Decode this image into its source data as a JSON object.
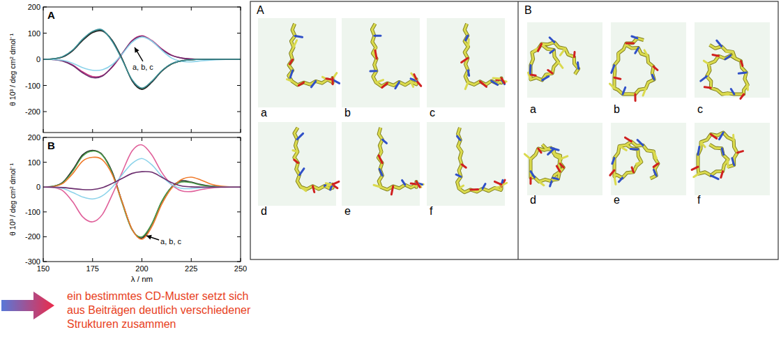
{
  "chart_data": [
    {
      "type": "line",
      "title": "A",
      "y_label": "θ 10³ / deg cm² dmol⁻¹",
      "tick_labels": "y",
      "x": [
        150,
        155,
        160,
        165,
        170,
        175,
        180,
        185,
        190,
        195,
        200,
        205,
        210,
        215,
        220,
        225,
        230,
        235,
        240,
        245,
        250
      ],
      "xlim": [
        150,
        250
      ],
      "xticks": [
        150,
        175,
        200,
        225,
        250
      ],
      "ylim": [
        -280,
        200
      ],
      "yticks": [
        -200,
        -100,
        0,
        100,
        200
      ],
      "annotations": [
        {
          "text": "a, b, c"
        }
      ],
      "series": [
        {
          "color": "#c8307e",
          "values": [
            0,
            -1,
            -6,
            -22,
            -48,
            -66,
            -62,
            -30,
            20,
            72,
            90,
            72,
            40,
            16,
            5,
            1,
            0,
            0,
            0,
            0,
            0
          ]
        },
        {
          "color": "#6b2d6e",
          "values": [
            0,
            -1,
            -7,
            -24,
            -52,
            -70,
            -64,
            -28,
            22,
            70,
            88,
            70,
            38,
            15,
            5,
            1,
            0,
            0,
            0,
            0,
            0
          ]
        },
        {
          "color": "#8cd3ea",
          "values": [
            0,
            -1,
            -4,
            -15,
            -32,
            -42,
            -40,
            -20,
            20,
            65,
            85,
            70,
            35,
            5,
            -8,
            -10,
            -6,
            -3,
            -1,
            0,
            0
          ]
        },
        {
          "color": "#4a9a4a",
          "values": [
            0,
            2,
            10,
            35,
            75,
            105,
            110,
            70,
            0,
            -80,
            -112,
            -85,
            -45,
            -18,
            -6,
            -2,
            0,
            0,
            0,
            0,
            0
          ]
        },
        {
          "color": "#222222",
          "values": [
            0,
            2,
            9,
            33,
            72,
            102,
            108,
            72,
            2,
            -82,
            -115,
            -88,
            -46,
            -18,
            -6,
            -2,
            0,
            0,
            0,
            0,
            0
          ]
        },
        {
          "color": "#3c8f9a",
          "values": [
            0,
            2,
            11,
            36,
            77,
            107,
            112,
            68,
            -2,
            -78,
            -110,
            -84,
            -44,
            -17,
            -6,
            -2,
            0,
            0,
            0,
            0,
            0
          ]
        }
      ]
    },
    {
      "type": "line",
      "title": "B",
      "y_label": "θ 10³ / deg cm² dmol⁻¹",
      "x_label": "λ / nm",
      "x": [
        150,
        155,
        160,
        165,
        170,
        175,
        180,
        185,
        190,
        195,
        200,
        205,
        210,
        215,
        220,
        225,
        230,
        235,
        240,
        245,
        250
      ],
      "xlim": [
        150,
        250
      ],
      "xticks": [
        150,
        175,
        200,
        225,
        250
      ],
      "ylim": [
        -300,
        200
      ],
      "yticks": [
        -300,
        -200,
        -100,
        0,
        100,
        200
      ],
      "annotations": [
        {
          "text": "a, b, c"
        }
      ],
      "series": [
        {
          "color": "#222222",
          "values": [
            0,
            3,
            20,
            70,
            130,
            148,
            130,
            60,
            -60,
            -170,
            -205,
            -150,
            -60,
            0,
            25,
            20,
            10,
            4,
            1,
            0,
            0
          ]
        },
        {
          "color": "#4a9a4a",
          "values": [
            0,
            3,
            18,
            65,
            125,
            145,
            128,
            55,
            -65,
            -172,
            -200,
            -148,
            -58,
            -2,
            20,
            18,
            8,
            3,
            1,
            0,
            0
          ]
        },
        {
          "color": "#f07a2a",
          "values": [
            0,
            2,
            15,
            55,
            105,
            120,
            110,
            50,
            -60,
            -170,
            -210,
            -160,
            -70,
            -5,
            30,
            40,
            28,
            12,
            4,
            1,
            0
          ]
        },
        {
          "color": "#e0609a",
          "values": [
            0,
            -2,
            -15,
            -60,
            -120,
            -140,
            -110,
            -30,
            60,
            145,
            170,
            130,
            60,
            10,
            -15,
            -18,
            -10,
            -4,
            -1,
            0,
            0
          ]
        },
        {
          "color": "#8cd3ea",
          "values": [
            0,
            -1,
            -6,
            -22,
            -40,
            -48,
            -35,
            0,
            50,
            95,
            115,
            90,
            45,
            10,
            -5,
            -6,
            -3,
            -1,
            0,
            0,
            0
          ]
        },
        {
          "color": "#6b2d6e",
          "values": [
            0,
            0,
            -2,
            -6,
            -10,
            -10,
            -2,
            15,
            35,
            55,
            62,
            60,
            40,
            18,
            5,
            1,
            0,
            0,
            0,
            0,
            0
          ]
        }
      ]
    }
  ],
  "structures": [
    {
      "label": "A",
      "items": [
        "a",
        "b",
        "c",
        "d",
        "e",
        "f"
      ]
    },
    {
      "label": "B",
      "items": [
        "a",
        "b",
        "c",
        "d",
        "e",
        "f"
      ]
    }
  ],
  "caption": "ein bestimmtes CD-Muster setzt sich aus Beiträgen deutlich verschiedener Strukturen zusammen"
}
